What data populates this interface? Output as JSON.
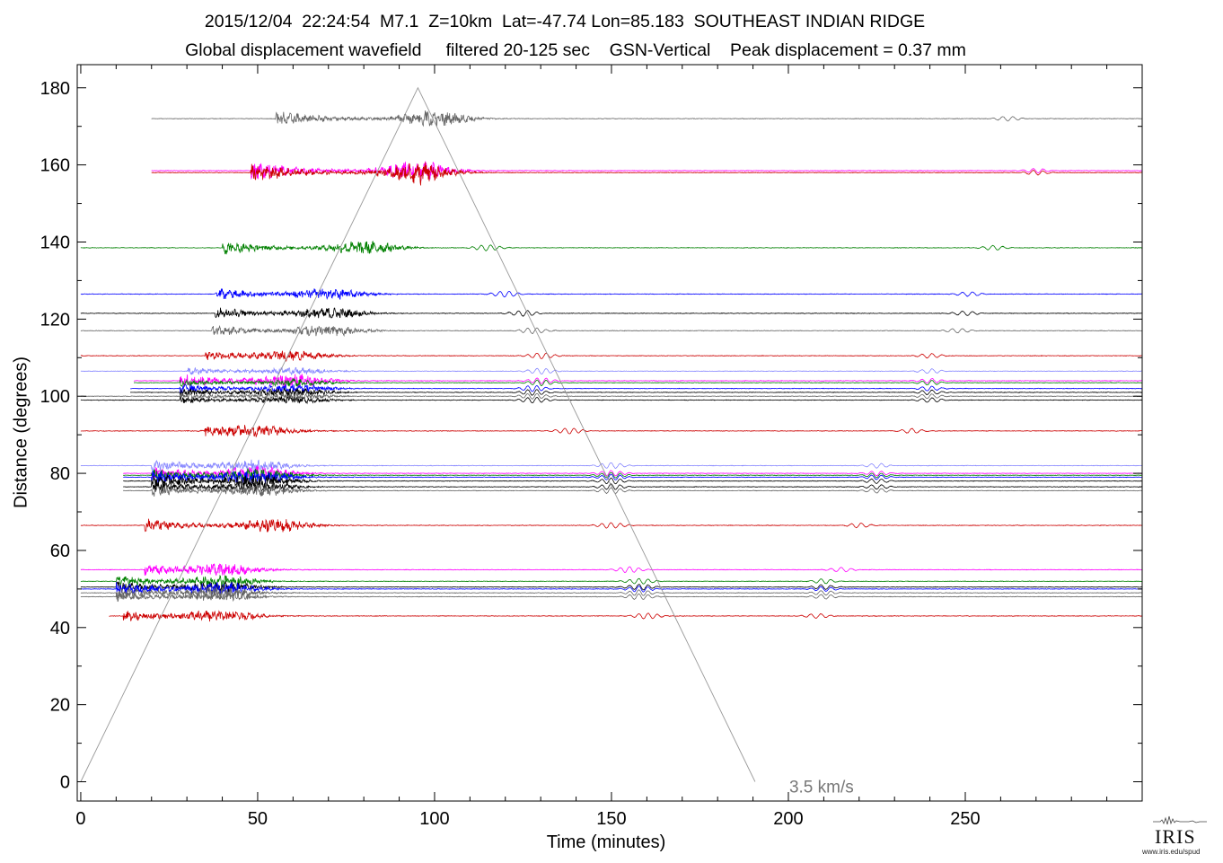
{
  "title_line1": "2015/12/04  22:24:54  M7.1  Z=10km  Lat=-47.74 Lon=85.183  SOUTHEAST INDIAN RIDGE",
  "title_line2": "Global displacement wavefield     filtered 20-125 sec    GSN-Vertical    Peak displacement = 0.37 mm",
  "chart_data": {
    "type": "line",
    "xlabel": "Time (minutes)",
    "ylabel": "Distance (degrees)",
    "xlim": [
      -1,
      300
    ],
    "ylim": [
      -5,
      186
    ],
    "xticks": [
      0,
      50,
      100,
      150,
      200,
      250
    ],
    "yticks": [
      0,
      20,
      40,
      60,
      80,
      100,
      120,
      140,
      160,
      180
    ],
    "grid": false,
    "velocity_line": {
      "label": "3.5 km/s",
      "points": [
        [
          0,
          0
        ],
        [
          95.3,
          180
        ],
        [
          190.6,
          0
        ]
      ],
      "color": "#999999"
    },
    "series": [
      {
        "distance": 172,
        "start": 20,
        "color": "#666666",
        "amp": 7,
        "r1": 55,
        "r2": 100,
        "rayleigh": 95,
        "minor": 262
      },
      {
        "distance": 158.5,
        "start": 20,
        "color": "#ff00ff",
        "amp": 9,
        "r1": 48,
        "r2": 95,
        "rayleigh": 95,
        "minor": 270
      },
      {
        "distance": 158,
        "start": 20,
        "color": "#cc0000",
        "amp": 9,
        "r1": 48,
        "r2": 95,
        "rayleigh": 95,
        "minor": 270
      },
      {
        "distance": 138.5,
        "start": 0,
        "color": "#008000",
        "amp": 6,
        "r1": 40,
        "r2": 80,
        "rayleigh": 115,
        "minor": 258
      },
      {
        "distance": 126.5,
        "start": 0,
        "color": "#0000ff",
        "amp": 5,
        "r1": 38,
        "r2": 70,
        "rayleigh": 120,
        "minor": 251
      },
      {
        "distance": 121.5,
        "start": 0,
        "color": "#000000",
        "amp": 5,
        "r1": 38,
        "r2": 70,
        "rayleigh": 125,
        "minor": 250
      },
      {
        "distance": 117,
        "start": 0,
        "color": "#666666",
        "amp": 5,
        "r1": 37,
        "r2": 70,
        "rayleigh": 128,
        "minor": 248
      },
      {
        "distance": 110.5,
        "start": 0,
        "color": "#cc0000",
        "amp": 4,
        "r1": 35,
        "r2": 60,
        "rayleigh": 130,
        "minor": 240
      },
      {
        "distance": 106.5,
        "start": 0,
        "color": "#8888ff",
        "amp": 3,
        "r1": 30,
        "r2": 60,
        "rayleigh": 130,
        "minor": 240
      },
      {
        "distance": 104,
        "start": 15,
        "color": "#ff00ff",
        "amp": 6,
        "r1": 28,
        "r2": 60,
        "rayleigh": 130,
        "minor": 240
      },
      {
        "distance": 103.5,
        "start": 15,
        "color": "#008000",
        "amp": 3,
        "r1": 28,
        "r2": 60,
        "rayleigh": 130,
        "minor": 240
      },
      {
        "distance": 102,
        "start": 14,
        "color": "#0000ff",
        "amp": 4,
        "r1": 28,
        "r2": 60,
        "rayleigh": 128,
        "minor": 240
      },
      {
        "distance": 101,
        "start": 14,
        "color": "#000000",
        "amp": 4,
        "r1": 28,
        "r2": 60,
        "rayleigh": 128,
        "minor": 240
      },
      {
        "distance": 100,
        "start": 0,
        "color": "#666666",
        "amp": 3,
        "r1": 28,
        "r2": 60,
        "rayleigh": 128,
        "minor": 240
      },
      {
        "distance": 99,
        "start": 0,
        "color": "#000000",
        "amp": 3,
        "r1": 28,
        "r2": 60,
        "rayleigh": 128,
        "minor": 240
      },
      {
        "distance": 91,
        "start": 0,
        "color": "#cc0000",
        "amp": 4,
        "r1": 35,
        "r2": 50,
        "rayleigh": 138,
        "minor": 235
      },
      {
        "distance": 82,
        "start": 0,
        "color": "#8888ff",
        "amp": 5,
        "r1": 20,
        "r2": 50,
        "rayleigh": 150,
        "minor": 225
      },
      {
        "distance": 80,
        "start": 12,
        "color": "#ff00ff",
        "amp": 6,
        "r1": 20,
        "r2": 50,
        "rayleigh": 150,
        "minor": 225
      },
      {
        "distance": 79.5,
        "start": 12,
        "color": "#008000",
        "amp": 6,
        "r1": 20,
        "r2": 50,
        "rayleigh": 150,
        "minor": 225
      },
      {
        "distance": 79,
        "start": 12,
        "color": "#0000ff",
        "amp": 6,
        "r1": 20,
        "r2": 50,
        "rayleigh": 150,
        "minor": 225
      },
      {
        "distance": 78,
        "start": 12,
        "color": "#000000",
        "amp": 6,
        "r1": 20,
        "r2": 50,
        "rayleigh": 150,
        "minor": 225
      },
      {
        "distance": 76.5,
        "start": 12,
        "color": "#000000",
        "amp": 5,
        "r1": 20,
        "r2": 50,
        "rayleigh": 150,
        "minor": 225
      },
      {
        "distance": 75.5,
        "start": 12,
        "color": "#666666",
        "amp": 5,
        "r1": 20,
        "r2": 50,
        "rayleigh": 150,
        "minor": 225
      },
      {
        "distance": 66.5,
        "start": 0,
        "color": "#cc0000",
        "amp": 6,
        "r1": 18,
        "r2": 55,
        "rayleigh": 150,
        "minor": 220
      },
      {
        "distance": 55,
        "start": 0,
        "color": "#ff00ff",
        "amp": 5,
        "r1": 18,
        "r2": 40,
        "rayleigh": 155,
        "minor": 215
      },
      {
        "distance": 52,
        "start": 0,
        "color": "#008000",
        "amp": 5,
        "r1": 10,
        "r2": 40,
        "rayleigh": 158,
        "minor": 210
      },
      {
        "distance": 50.5,
        "start": 0,
        "color": "#000000",
        "amp": 5,
        "r1": 10,
        "r2": 40,
        "rayleigh": 158,
        "minor": 210
      },
      {
        "distance": 50,
        "start": 0,
        "color": "#0000ff",
        "amp": 6,
        "r1": 10,
        "r2": 40,
        "rayleigh": 158,
        "minor": 210
      },
      {
        "distance": 49,
        "start": 0,
        "color": "#666666",
        "amp": 5,
        "r1": 10,
        "r2": 40,
        "rayleigh": 158,
        "minor": 210
      },
      {
        "distance": 48,
        "start": 0,
        "color": "#666666",
        "amp": 4,
        "r1": 10,
        "r2": 40,
        "rayleigh": 158,
        "minor": 210
      },
      {
        "distance": 43,
        "start": 8,
        "color": "#cc0000",
        "amp": 5,
        "r1": 12,
        "r2": 40,
        "rayleigh": 160,
        "minor": 208
      }
    ]
  },
  "logo": {
    "text": "IRIS",
    "url": "www.iris.edu/spud"
  }
}
